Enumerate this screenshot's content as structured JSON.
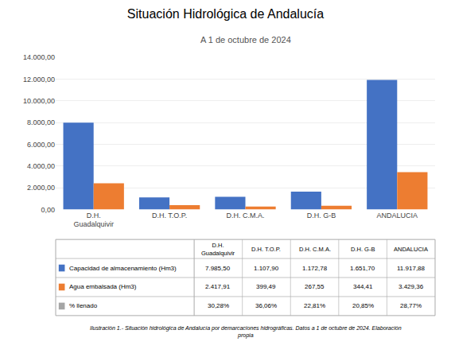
{
  "chart_data": {
    "type": "bar",
    "title": "Situación Hidrológica de Andalucía",
    "subtitle": "A 1 de octubre de 2024",
    "categories": [
      "D.H.\nGuadalquivir",
      "D.H. T.O.P.",
      "D.H. C.M.A.",
      "D.H. G-B",
      "ANDALUCIA"
    ],
    "series": [
      {
        "name": "Capacidad de almacenamiento (Hm3)",
        "color": "#4472C4",
        "values": [
          7985.5,
          1107.9,
          1172.78,
          1651.7,
          11917.88
        ],
        "value_labels": [
          "7.985,50",
          "1.107,90",
          "1.172,78",
          "1.651,70",
          "11.917,88"
        ]
      },
      {
        "name": "Agua embalsada (Hm3)",
        "color": "#ED7D31",
        "values": [
          2417.91,
          399.49,
          267.55,
          344.41,
          3429.36
        ],
        "value_labels": [
          "2.417,91",
          "399,49",
          "267,55",
          "344,41",
          "3.429,36"
        ]
      }
    ],
    "table_rows": [
      {
        "name": "% llenado",
        "color": "#A5A5A5",
        "values": [
          30.28,
          36.06,
          22.81,
          20.85,
          28.77
        ],
        "value_labels": [
          "30,28%",
          "36,06%",
          "22,81%",
          "20,85%",
          "28,77%"
        ]
      }
    ],
    "ylim": [
      0,
      14000
    ],
    "yticks": [
      {
        "value": 0,
        "label": "0,00"
      },
      {
        "value": 2000,
        "label": "2.000,00"
      },
      {
        "value": 4000,
        "label": "4.000,00"
      },
      {
        "value": 6000,
        "label": "6.000,00"
      },
      {
        "value": 8000,
        "label": "8.000,00"
      },
      {
        "value": 10000,
        "label": "10.000,00"
      },
      {
        "value": 12000,
        "label": "12.000,00"
      },
      {
        "value": 14000,
        "label": "14.000,00"
      }
    ],
    "grid": true,
    "caption": "Ilustración 1.- Situación hidrológica de Andalucía por demarcaciones hidrográficas. Datos a 1 de octubre de 2024. Elaboración\npropia"
  }
}
